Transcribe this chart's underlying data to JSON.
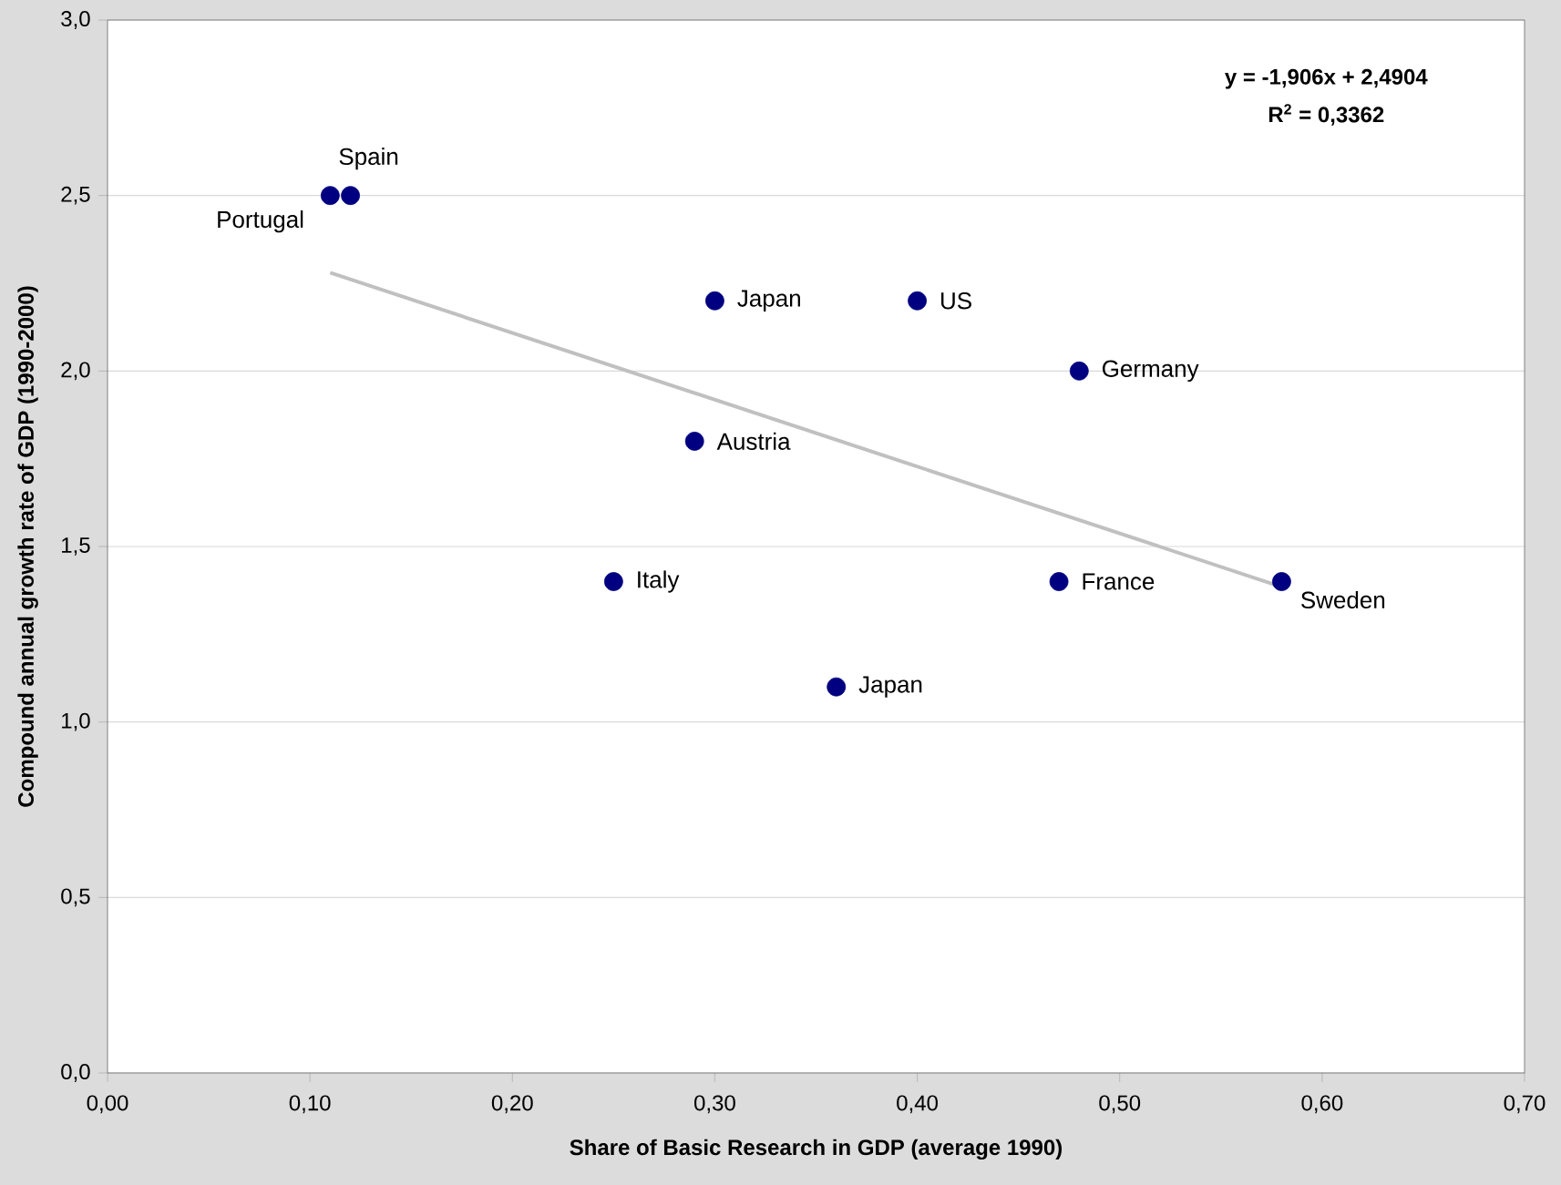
{
  "chart_data": {
    "type": "scatter",
    "xlabel": "Share of Basic Research in GDP (average 1990)",
    "ylabel": "Compound annual growth rate of GDP (1990-2000)",
    "series": [
      {
        "color": "#000080",
        "x": [
          0.11,
          0.12,
          0.3,
          0.4,
          0.48,
          0.29,
          0.25,
          0.47,
          0.58,
          0.36
        ],
        "values": [
          2.5,
          2.5,
          2.2,
          2.2,
          2.0,
          1.8,
          1.4,
          1.4,
          1.4,
          1.1
        ]
      },
      {
        "type": "line",
        "marker": "none",
        "color": "#c0c0c0",
        "x": [
          0.11,
          0.58
        ],
        "values": [
          2.28,
          1.385
        ]
      }
    ],
    "annotations": [
      {
        "text": "Portugal",
        "x": 0.11,
        "y": 2.5
      },
      {
        "text": "Spain",
        "x": 0.12,
        "y": 2.5
      },
      {
        "text": "Japan",
        "x": 0.3,
        "y": 2.2
      },
      {
        "text": "US",
        "x": 0.4,
        "y": 2.2
      },
      {
        "text": "Germany",
        "x": 0.48,
        "y": 2.0
      },
      {
        "text": "Austria",
        "x": 0.29,
        "y": 1.8
      },
      {
        "text": "Italy",
        "x": 0.25,
        "y": 1.4
      },
      {
        "text": "France",
        "x": 0.47,
        "y": 1.4
      },
      {
        "text": "Sweden",
        "x": 0.58,
        "y": 1.4
      },
      {
        "text": "Japan",
        "x": 0.36,
        "y": 1.1
      },
      "y = -1,906x + 2,4904",
      "R$^{2}$ = 0,3362"
    ],
    "xlim": [
      0,
      0.7
    ],
    "xticks": [
      {
        "value": 0,
        "label": "0,00"
      },
      {
        "value": 0.1,
        "label": "0,10"
      },
      {
        "value": 0.2,
        "label": "0,20"
      },
      {
        "value": 0.3,
        "label": "0,30"
      },
      {
        "value": 0.4,
        "label": "0,40"
      },
      {
        "value": 0.5,
        "label": "0,50"
      },
      {
        "value": 0.6,
        "label": "0,60"
      },
      {
        "value": 0.7,
        "label": "0,70"
      }
    ],
    "ylim": [
      0,
      3
    ],
    "yticks": [
      {
        "value": 0,
        "label": "0,0"
      },
      {
        "value": 0.5,
        "label": "0,5"
      },
      {
        "value": 1,
        "label": "1,0"
      },
      {
        "value": 1.5,
        "label": "1,5"
      },
      {
        "value": 2,
        "label": "2,0"
      },
      {
        "value": 2.5,
        "label": "2,5"
      },
      {
        "value": 3,
        "label": "3,0"
      }
    ],
    "grid": "y"
  }
}
